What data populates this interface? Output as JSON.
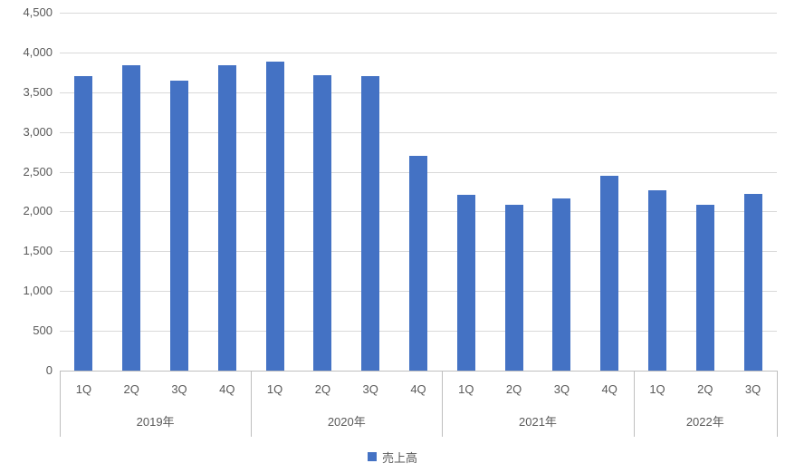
{
  "chart_data": {
    "type": "bar",
    "title": "",
    "xlabel": "",
    "ylabel": "",
    "ylim": [
      0,
      4500
    ],
    "ytick_step": 500,
    "yticks_top_to_bottom": [
      "4,500",
      "4,000",
      "3,500",
      "3,000",
      "2,500",
      "2,000",
      "1,500",
      "1,000",
      "500",
      "0"
    ],
    "grid": true,
    "legend_label": "売上高",
    "legend_position": "bottom",
    "bar_color": "#4472C4",
    "gridline_color": "#D9D9D9",
    "axis_line_color": "#BFBFBF",
    "label_color": "#595959",
    "groups": [
      {
        "label": "2019年",
        "categories": [
          "1Q",
          "2Q",
          "3Q",
          "4Q"
        ],
        "values": [
          3700,
          3840,
          3640,
          3840
        ]
      },
      {
        "label": "2020年",
        "categories": [
          "1Q",
          "2Q",
          "3Q",
          "4Q"
        ],
        "values": [
          3890,
          3710,
          3700,
          2700
        ]
      },
      {
        "label": "2021年",
        "categories": [
          "1Q",
          "2Q",
          "3Q",
          "4Q"
        ],
        "values": [
          2210,
          2080,
          2160,
          2450
        ]
      },
      {
        "label": "2022年",
        "categories": [
          "1Q",
          "2Q",
          "3Q"
        ],
        "values": [
          2270,
          2090,
          2220
        ]
      }
    ]
  }
}
